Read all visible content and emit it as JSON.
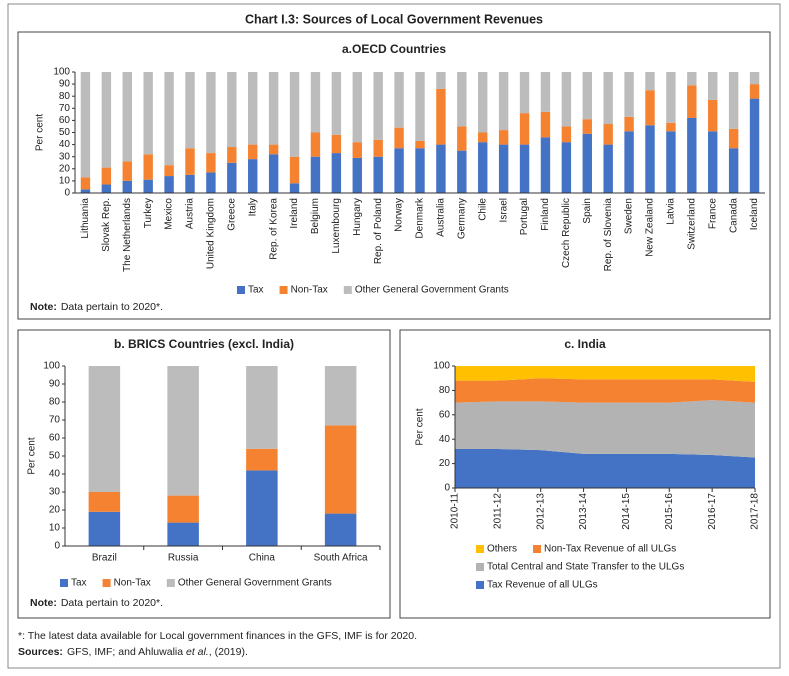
{
  "title": "Chart I.3: Sources of Local Government Revenues",
  "chart_data": [
    {
      "type": "bar",
      "stacked": true,
      "title": "a.OECD Countries",
      "ylabel": "Per cent",
      "categories": [
        "Lithuania",
        "Slovak Rep.",
        "The Netherlands",
        "Turkey",
        "Mexico",
        "Austria",
        "United Kingdom",
        "Greece",
        "Italy",
        "Rep. of Korea",
        "Ireland",
        "Belgium",
        "Luxembourg",
        "Hungary",
        "Rep. of Poland",
        "Norway",
        "Denmark",
        "Australia",
        "Germany",
        "Chile",
        "Israel",
        "Portugal",
        "Finland",
        "Czech Republic",
        "Spain",
        "Rep. of Slovenia",
        "Sweden",
        "New Zealand",
        "Latvia",
        "Switzerland",
        "France",
        "Canada",
        "Iceland"
      ],
      "series": [
        {
          "name": "Tax",
          "color": "#4472c4",
          "values": [
            3,
            7,
            10,
            11,
            14,
            15,
            17,
            25,
            28,
            32,
            8,
            30,
            33,
            29,
            30,
            37,
            37,
            40,
            35,
            42,
            40,
            40,
            46,
            42,
            49,
            40,
            51,
            56,
            51,
            62,
            51,
            37,
            78
          ]
        },
        {
          "name": "Non-Tax",
          "color": "#f58231",
          "values": [
            10,
            14,
            16,
            21,
            9,
            22,
            16,
            13,
            12,
            8,
            22,
            20,
            15,
            13,
            14,
            17,
            6,
            46,
            20,
            8,
            12,
            26,
            21,
            13,
            12,
            17,
            12,
            29,
            7,
            27,
            26,
            16,
            12
          ]
        },
        {
          "name": "Other General Government Grants",
          "color": "#bcbcbc",
          "values": [
            87,
            79,
            74,
            68,
            77,
            63,
            67,
            62,
            60,
            60,
            70,
            50,
            52,
            58,
            56,
            46,
            57,
            14,
            45,
            50,
            48,
            34,
            33,
            45,
            39,
            43,
            37,
            15,
            42,
            11,
            23,
            47,
            10
          ]
        }
      ],
      "ylim": [
        0,
        100
      ],
      "yticks": [
        0,
        10,
        20,
        30,
        40,
        50,
        60,
        70,
        80,
        90,
        100
      ],
      "note_label": "Note:",
      "note": "Data pertain to 2020*."
    },
    {
      "type": "bar",
      "stacked": true,
      "title": "b. BRICS Countries (excl. India)",
      "ylabel": "Per cent",
      "categories": [
        "Brazil",
        "Russia",
        "China",
        "South Africa"
      ],
      "series": [
        {
          "name": "Tax",
          "color": "#4472c4",
          "values": [
            19,
            13,
            42,
            18
          ]
        },
        {
          "name": "Non-Tax",
          "color": "#f58231",
          "values": [
            11,
            15,
            12,
            49
          ]
        },
        {
          "name": "Other General Government Grants",
          "color": "#bcbcbc",
          "values": [
            70,
            72,
            46,
            33
          ]
        }
      ],
      "ylim": [
        0,
        100
      ],
      "yticks": [
        0,
        10,
        20,
        30,
        40,
        50,
        60,
        70,
        80,
        90,
        100
      ],
      "note_label": "Note:",
      "note": "Data pertain to 2020*."
    },
    {
      "type": "area",
      "stacked": true,
      "title": "c. India",
      "ylabel": "Per cent",
      "categories": [
        "2010-11",
        "2011-12",
        "2012-13",
        "2013-14",
        "2014-15",
        "2015-16",
        "2016-17",
        "2017-18"
      ],
      "series": [
        {
          "name": "Tax Revenue of all ULGs",
          "color": "#4472c4",
          "values": [
            32,
            32,
            31,
            28,
            28,
            28,
            27,
            25
          ]
        },
        {
          "name": "Total Central and State Transfer to the ULGs",
          "color": "#b3b3b3",
          "values": [
            38,
            39,
            40,
            42,
            42,
            42,
            45,
            45
          ]
        },
        {
          "name": "Non-Tax Revenue of all ULGs",
          "color": "#f58231",
          "values": [
            18,
            17,
            19,
            19,
            19,
            19,
            17,
            17
          ]
        },
        {
          "name": "Others",
          "color": "#ffc000",
          "values": [
            12,
            12,
            10,
            11,
            11,
            11,
            11,
            13
          ]
        }
      ],
      "ylim": [
        0,
        100
      ],
      "yticks": [
        0,
        20,
        40,
        60,
        80,
        100
      ]
    }
  ],
  "footnote": "*: The latest data available for Local government finances in the GFS, IMF is for 2020.",
  "sources_label": "Sources:",
  "sources_parts": [
    "GFS, IMF; and Ahluwalia ",
    "et al.",
    ", (2019)."
  ]
}
